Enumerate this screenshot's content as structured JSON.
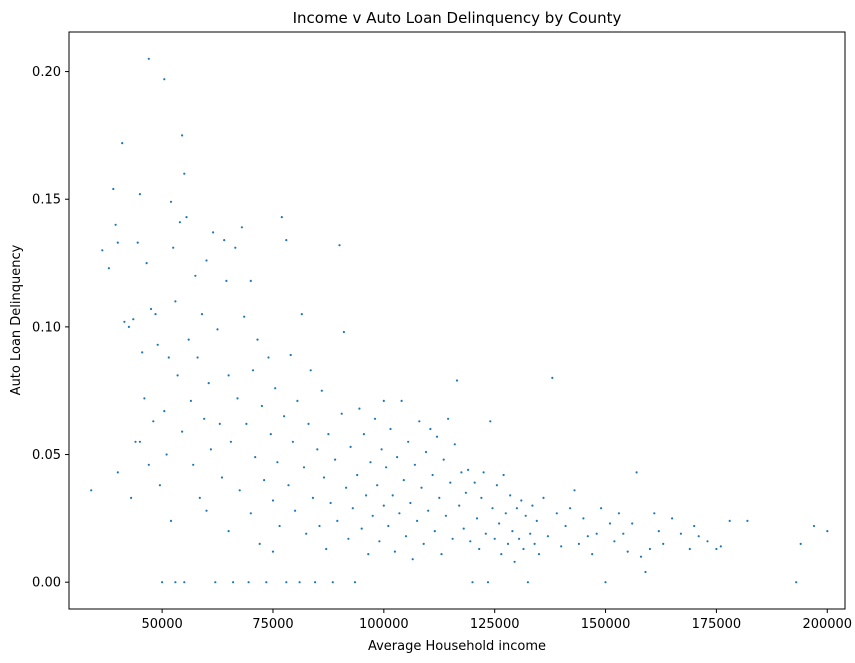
{
  "chart_data": {
    "type": "scatter",
    "title": "Income v Auto Loan Delinquency by County",
    "xlabel": "Average Household income",
    "ylabel": "Auto Loan Delinquency",
    "xlim": [
      29000,
      204000
    ],
    "ylim": [
      -0.0105,
      0.2155
    ],
    "xticks": [
      50000,
      75000,
      100000,
      125000,
      150000,
      175000,
      200000
    ],
    "xtick_labels": [
      "50000",
      "75000",
      "100000",
      "125000",
      "150000",
      "175000",
      "200000"
    ],
    "yticks": [
      0.0,
      0.05,
      0.1,
      0.15,
      0.2
    ],
    "ytick_labels": [
      "0.00",
      "0.05",
      "0.10",
      "0.15",
      "0.20"
    ],
    "grid": false,
    "marker_color": "#1f77b4",
    "series": [
      {
        "values": [
          [
            34000,
            0.036
          ],
          [
            36500,
            0.13
          ],
          [
            38000,
            0.123
          ],
          [
            39000,
            0.154
          ],
          [
            39500,
            0.14
          ],
          [
            40000,
            0.133
          ],
          [
            40000,
            0.043
          ],
          [
            41000,
            0.172
          ],
          [
            41500,
            0.102
          ],
          [
            42500,
            0.1
          ],
          [
            43000,
            0.033
          ],
          [
            43500,
            0.103
          ],
          [
            44000,
            0.055
          ],
          [
            44500,
            0.133
          ],
          [
            45000,
            0.152
          ],
          [
            45000,
            0.055
          ],
          [
            45500,
            0.09
          ],
          [
            46000,
            0.072
          ],
          [
            46500,
            0.125
          ],
          [
            47000,
            0.205
          ],
          [
            47000,
            0.046
          ],
          [
            47500,
            0.107
          ],
          [
            48000,
            0.063
          ],
          [
            48500,
            0.105
          ],
          [
            49000,
            0.093
          ],
          [
            49500,
            0.038
          ],
          [
            50000,
            0.0
          ],
          [
            50500,
            0.197
          ],
          [
            50500,
            0.067
          ],
          [
            51000,
            0.05
          ],
          [
            51500,
            0.088
          ],
          [
            52000,
            0.149
          ],
          [
            52000,
            0.024
          ],
          [
            52500,
            0.131
          ],
          [
            53000,
            0.11
          ],
          [
            53000,
            0.0
          ],
          [
            53500,
            0.081
          ],
          [
            54000,
            0.141
          ],
          [
            54500,
            0.175
          ],
          [
            54500,
            0.059
          ],
          [
            55000,
            0.16
          ],
          [
            55000,
            0.0
          ],
          [
            55500,
            0.143
          ],
          [
            56000,
            0.095
          ],
          [
            56500,
            0.071
          ],
          [
            57000,
            0.046
          ],
          [
            57500,
            0.12
          ],
          [
            58000,
            0.088
          ],
          [
            58500,
            0.033
          ],
          [
            59000,
            0.105
          ],
          [
            59500,
            0.064
          ],
          [
            60000,
            0.126
          ],
          [
            60000,
            0.028
          ],
          [
            60500,
            0.078
          ],
          [
            61000,
            0.052
          ],
          [
            61500,
            0.137
          ],
          [
            62000,
            0.0
          ],
          [
            62500,
            0.099
          ],
          [
            63000,
            0.062
          ],
          [
            63500,
            0.041
          ],
          [
            64000,
            0.134
          ],
          [
            64500,
            0.118
          ],
          [
            65000,
            0.081
          ],
          [
            65000,
            0.02
          ],
          [
            65500,
            0.055
          ],
          [
            66000,
            0.0
          ],
          [
            66500,
            0.131
          ],
          [
            67000,
            0.072
          ],
          [
            67500,
            0.036
          ],
          [
            68000,
            0.139
          ],
          [
            68500,
            0.104
          ],
          [
            69000,
            0.062
          ],
          [
            69500,
            0.0
          ],
          [
            70000,
            0.118
          ],
          [
            70000,
            0.027
          ],
          [
            70500,
            0.083
          ],
          [
            71000,
            0.049
          ],
          [
            71500,
            0.095
          ],
          [
            72000,
            0.015
          ],
          [
            72500,
            0.069
          ],
          [
            73000,
            0.04
          ],
          [
            73500,
            0.0
          ],
          [
            74000,
            0.088
          ],
          [
            74500,
            0.058
          ],
          [
            75000,
            0.032
          ],
          [
            75000,
            0.012
          ],
          [
            75500,
            0.076
          ],
          [
            76000,
            0.047
          ],
          [
            76500,
            0.022
          ],
          [
            77000,
            0.143
          ],
          [
            77500,
            0.065
          ],
          [
            78000,
            0.134
          ],
          [
            78000,
            0.0
          ],
          [
            78500,
            0.038
          ],
          [
            79000,
            0.089
          ],
          [
            79500,
            0.055
          ],
          [
            80000,
            0.028
          ],
          [
            80500,
            0.071
          ],
          [
            81000,
            0.0
          ],
          [
            81500,
            0.105
          ],
          [
            82000,
            0.045
          ],
          [
            82500,
            0.019
          ],
          [
            83000,
            0.062
          ],
          [
            83500,
            0.083
          ],
          [
            84000,
            0.033
          ],
          [
            84500,
            0.0
          ],
          [
            85000,
            0.052
          ],
          [
            85500,
            0.022
          ],
          [
            86000,
            0.075
          ],
          [
            86500,
            0.041
          ],
          [
            87000,
            0.013
          ],
          [
            87500,
            0.058
          ],
          [
            88000,
            0.031
          ],
          [
            88500,
            0.0
          ],
          [
            89000,
            0.048
          ],
          [
            89500,
            0.024
          ],
          [
            90000,
            0.132
          ],
          [
            90500,
            0.066
          ],
          [
            91000,
            0.098
          ],
          [
            91500,
            0.037
          ],
          [
            92000,
            0.017
          ],
          [
            92500,
            0.053
          ],
          [
            93000,
            0.029
          ],
          [
            93500,
            0.0
          ],
          [
            94000,
            0.042
          ],
          [
            94500,
            0.068
          ],
          [
            95000,
            0.021
          ],
          [
            95500,
            0.058
          ],
          [
            96000,
            0.034
          ],
          [
            96500,
            0.011
          ],
          [
            97000,
            0.047
          ],
          [
            97500,
            0.026
          ],
          [
            98000,
            0.064
          ],
          [
            98500,
            0.038
          ],
          [
            99000,
            0.016
          ],
          [
            99500,
            0.052
          ],
          [
            100000,
            0.03
          ],
          [
            100000,
            0.071
          ],
          [
            100500,
            0.045
          ],
          [
            101000,
            0.022
          ],
          [
            101500,
            0.06
          ],
          [
            102000,
            0.034
          ],
          [
            102500,
            0.012
          ],
          [
            103000,
            0.049
          ],
          [
            103500,
            0.027
          ],
          [
            104000,
            0.071
          ],
          [
            104500,
            0.04
          ],
          [
            105000,
            0.018
          ],
          [
            105500,
            0.055
          ],
          [
            106000,
            0.031
          ],
          [
            106500,
            0.009
          ],
          [
            107000,
            0.046
          ],
          [
            107500,
            0.024
          ],
          [
            108000,
            0.063
          ],
          [
            108500,
            0.037
          ],
          [
            109000,
            0.015
          ],
          [
            109500,
            0.051
          ],
          [
            110000,
            0.028
          ],
          [
            110500,
            0.06
          ],
          [
            111000,
            0.042
          ],
          [
            111500,
            0.02
          ],
          [
            112000,
            0.057
          ],
          [
            112500,
            0.033
          ],
          [
            113000,
            0.011
          ],
          [
            113500,
            0.048
          ],
          [
            114000,
            0.026
          ],
          [
            114500,
            0.064
          ],
          [
            115000,
            0.039
          ],
          [
            115500,
            0.017
          ],
          [
            116000,
            0.054
          ],
          [
            116500,
            0.079
          ],
          [
            117000,
            0.03
          ],
          [
            117500,
            0.043
          ],
          [
            118000,
            0.021
          ],
          [
            118500,
            0.035
          ],
          [
            119000,
            0.044
          ],
          [
            119500,
            0.016
          ],
          [
            120000,
            0.0
          ],
          [
            120500,
            0.039
          ],
          [
            121000,
            0.025
          ],
          [
            121500,
            0.013
          ],
          [
            122000,
            0.033
          ],
          [
            122500,
            0.043
          ],
          [
            123000,
            0.019
          ],
          [
            123500,
            0.0
          ],
          [
            124000,
            0.063
          ],
          [
            124500,
            0.029
          ],
          [
            125000,
            0.017
          ],
          [
            125500,
            0.038
          ],
          [
            126000,
            0.023
          ],
          [
            126500,
            0.011
          ],
          [
            127000,
            0.042
          ],
          [
            127500,
            0.027
          ],
          [
            128000,
            0.015
          ],
          [
            128500,
            0.034
          ],
          [
            129000,
            0.02
          ],
          [
            129500,
            0.008
          ],
          [
            130000,
            0.029
          ],
          [
            130500,
            0.017
          ],
          [
            131000,
            0.032
          ],
          [
            131500,
            0.013
          ],
          [
            132000,
            0.026
          ],
          [
            132500,
            0.0
          ],
          [
            133000,
            0.019
          ],
          [
            133500,
            0.03
          ],
          [
            134000,
            0.015
          ],
          [
            134500,
            0.024
          ],
          [
            135000,
            0.011
          ],
          [
            136000,
            0.033
          ],
          [
            137000,
            0.018
          ],
          [
            138000,
            0.08
          ],
          [
            139000,
            0.027
          ],
          [
            140000,
            0.014
          ],
          [
            141000,
            0.022
          ],
          [
            142000,
            0.029
          ],
          [
            143000,
            0.036
          ],
          [
            144000,
            0.015
          ],
          [
            145000,
            0.025
          ],
          [
            146000,
            0.018
          ],
          [
            147000,
            0.011
          ],
          [
            148000,
            0.019
          ],
          [
            149000,
            0.029
          ],
          [
            150000,
            0.0
          ],
          [
            151000,
            0.023
          ],
          [
            152000,
            0.016
          ],
          [
            153000,
            0.027
          ],
          [
            154000,
            0.019
          ],
          [
            155000,
            0.012
          ],
          [
            156000,
            0.023
          ],
          [
            157000,
            0.043
          ],
          [
            158000,
            0.01
          ],
          [
            159000,
            0.004
          ],
          [
            160000,
            0.013
          ],
          [
            161000,
            0.027
          ],
          [
            162000,
            0.02
          ],
          [
            163000,
            0.015
          ],
          [
            165000,
            0.025
          ],
          [
            167000,
            0.019
          ],
          [
            169000,
            0.013
          ],
          [
            170000,
            0.022
          ],
          [
            171000,
            0.018
          ],
          [
            173000,
            0.016
          ],
          [
            175000,
            0.013
          ],
          [
            176000,
            0.014
          ],
          [
            178000,
            0.024
          ],
          [
            182000,
            0.024
          ],
          [
            193000,
            0.0
          ],
          [
            194000,
            0.015
          ],
          [
            197000,
            0.022
          ],
          [
            200000,
            0.02
          ]
        ]
      }
    ]
  }
}
